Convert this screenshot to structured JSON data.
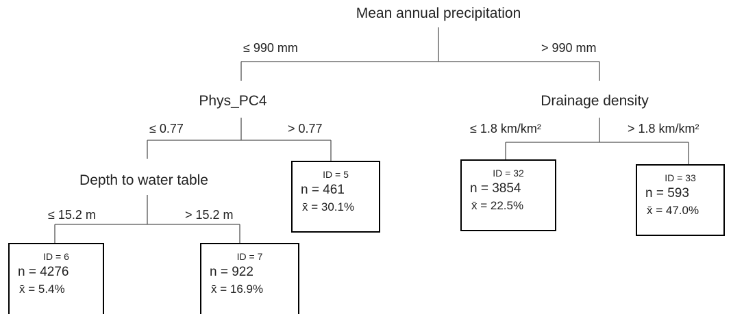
{
  "splits": [
    {
      "label": "Mean annual precipitation",
      "left": "≤ 990 mm",
      "right": "> 990 mm"
    },
    {
      "label": "Phys_PC4",
      "left": "≤ 0.77",
      "right": "> 0.77"
    },
    {
      "label": "Drainage density",
      "left": "≤ 1.8 km/km²",
      "right": "> 1.8 km/km²"
    },
    {
      "label": "Depth to water table",
      "left": "≤ 15.2 m",
      "right": "> 15.2 m"
    }
  ],
  "leaves": [
    {
      "id": "ID = 6",
      "n": "n = 4276",
      "mean": "x̄ = 5.4%"
    },
    {
      "id": "ID = 7",
      "n": "n = 922",
      "mean": "x̄ = 16.9%"
    },
    {
      "id": "ID = 5",
      "n": "n = 461",
      "mean": "x̄ = 30.1%"
    },
    {
      "id": "ID = 32",
      "n": "n = 3854",
      "mean": "x̄ = 22.5%"
    },
    {
      "id": "ID = 33",
      "n": "n = 593",
      "mean": "x̄ = 47.0%"
    }
  ]
}
